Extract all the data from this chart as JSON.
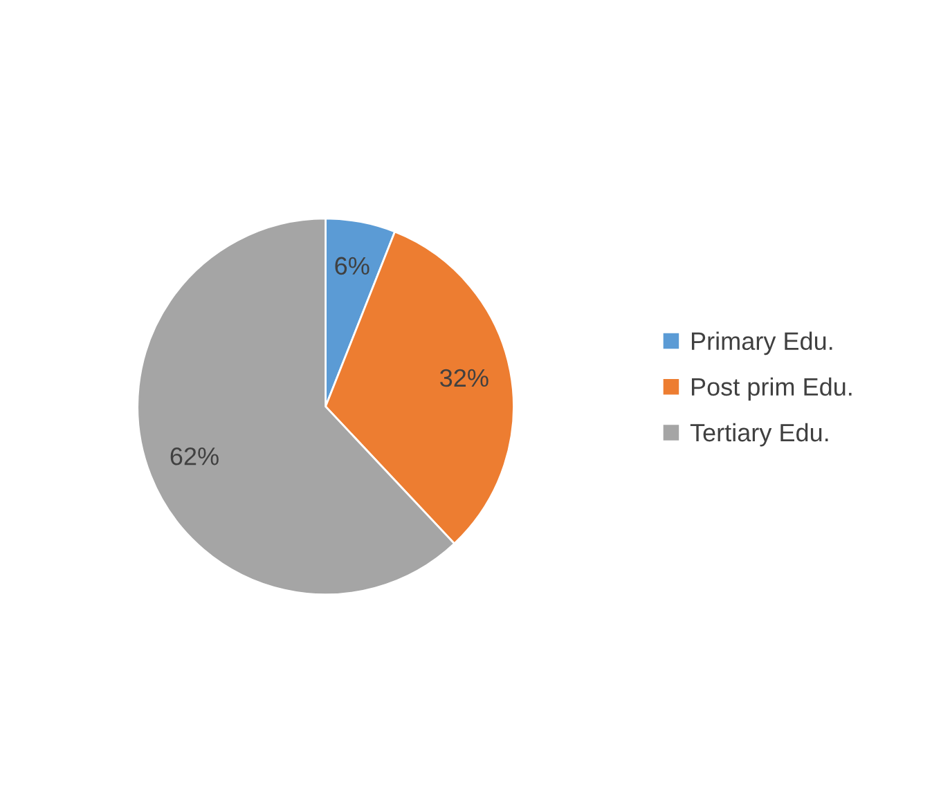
{
  "chart_data": {
    "type": "pie",
    "categories": [
      "Primary Edu.",
      "Post prim Edu.",
      "Tertiary Edu."
    ],
    "values": [
      6,
      32,
      62
    ],
    "colors": [
      "#5b9bd5",
      "#ed7d31",
      "#a5a5a5"
    ],
    "value_labels": [
      "6%",
      "32%",
      "62%"
    ],
    "legend": "right"
  }
}
